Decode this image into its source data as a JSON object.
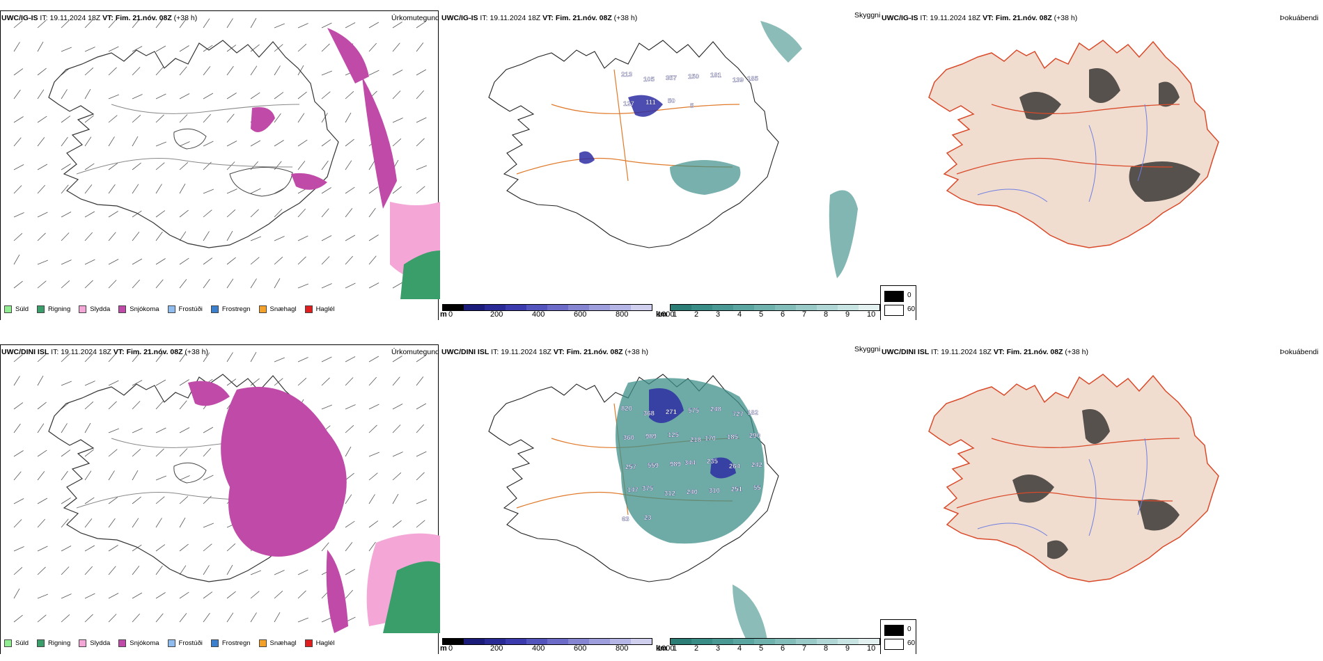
{
  "rows": [
    {
      "model": "UWC/IG-IS",
      "it_label": "IT:",
      "it_value": "19.11.2024 18Z",
      "vt_label": "VT:",
      "vt_value": "Fim. 21.nóv. 08Z",
      "lead": "(+38 h)",
      "precip_title": "Úrkomutegund",
      "cloud_title": "Skyggni",
      "fog_title": "Þokuábendi",
      "cloud_numbers": [
        "213",
        "105",
        "357",
        "150",
        "181",
        "139",
        "185",
        "127",
        "111",
        "50",
        "5"
      ]
    },
    {
      "model": "UWC/DINI ISL",
      "it_label": "IT:",
      "it_value": "19.11.2024 18Z",
      "vt_label": "VT:",
      "vt_value": "Fim. 21.nóv. 08Z",
      "lead": "(+38 h)",
      "precip_title": "Úrkomutegund",
      "cloud_title": "Skyggni",
      "fog_title": "Þokuábendi",
      "cloud_numbers": [
        "820",
        "368",
        "271",
        "575",
        "248",
        "727",
        "182",
        "360",
        "989",
        "125",
        "218",
        "170",
        "185",
        "290",
        "257",
        "559",
        "989",
        "344",
        "235",
        "264",
        "242",
        "147",
        "375",
        "312",
        "240",
        "310",
        "251",
        "55",
        "63",
        "23"
      ]
    }
  ],
  "precip_legend": [
    {
      "label": "Súld",
      "color": "#90ee90"
    },
    {
      "label": "Rigning",
      "color": "#3a9e6a"
    },
    {
      "label": "Slydda",
      "color": "#f4a6d7"
    },
    {
      "label": "Snjókoma",
      "color": "#c04aa8"
    },
    {
      "label": "Frostúði",
      "color": "#8fbcef"
    },
    {
      "label": "Frostregn",
      "color": "#3b7fcf"
    },
    {
      "label": "Snæhagl",
      "color": "#f4a12a"
    },
    {
      "label": "Haglél",
      "color": "#e01e1e"
    }
  ],
  "ceiling_scale": {
    "unit": "m",
    "tick_labels": [
      "0",
      "200",
      "400",
      "600",
      "800",
      "1000"
    ],
    "colors": [
      "#000000",
      "#1b1b7a",
      "#2a2a96",
      "#3b3bad",
      "#5454bd",
      "#6c6cc8",
      "#8585d2",
      "#9e9edc",
      "#b6b6e6",
      "#d0d0ee"
    ]
  },
  "visibility_scale": {
    "unit": "km",
    "tick_labels": [
      "1",
      "2",
      "3",
      "4",
      "5",
      "6",
      "7",
      "8",
      "9",
      "10"
    ],
    "colors": [
      "#2d7d77",
      "#3a8c86",
      "#4a9893",
      "#5ba5a0",
      "#6eb1ad",
      "#83bdba",
      "#99cac7",
      "#b0d7d5",
      "#c8e4e2",
      "#e2f1f0"
    ]
  },
  "fog_scale": {
    "high_label": "0",
    "low_label": "60",
    "high_color": "#000000",
    "low_color": "#ffffff"
  },
  "colors": {
    "land_fog": "#f1ddd0",
    "roads_orange": "#e07a2a",
    "roads_red": "#d94a2a",
    "rivers_blue": "#6f7fe0",
    "snow": "#c04aa8",
    "sleet": "#f4a6d7",
    "rain": "#3a9e6a",
    "teal": "#3d8f89",
    "ceiling_blue": "#2e2ea3"
  }
}
